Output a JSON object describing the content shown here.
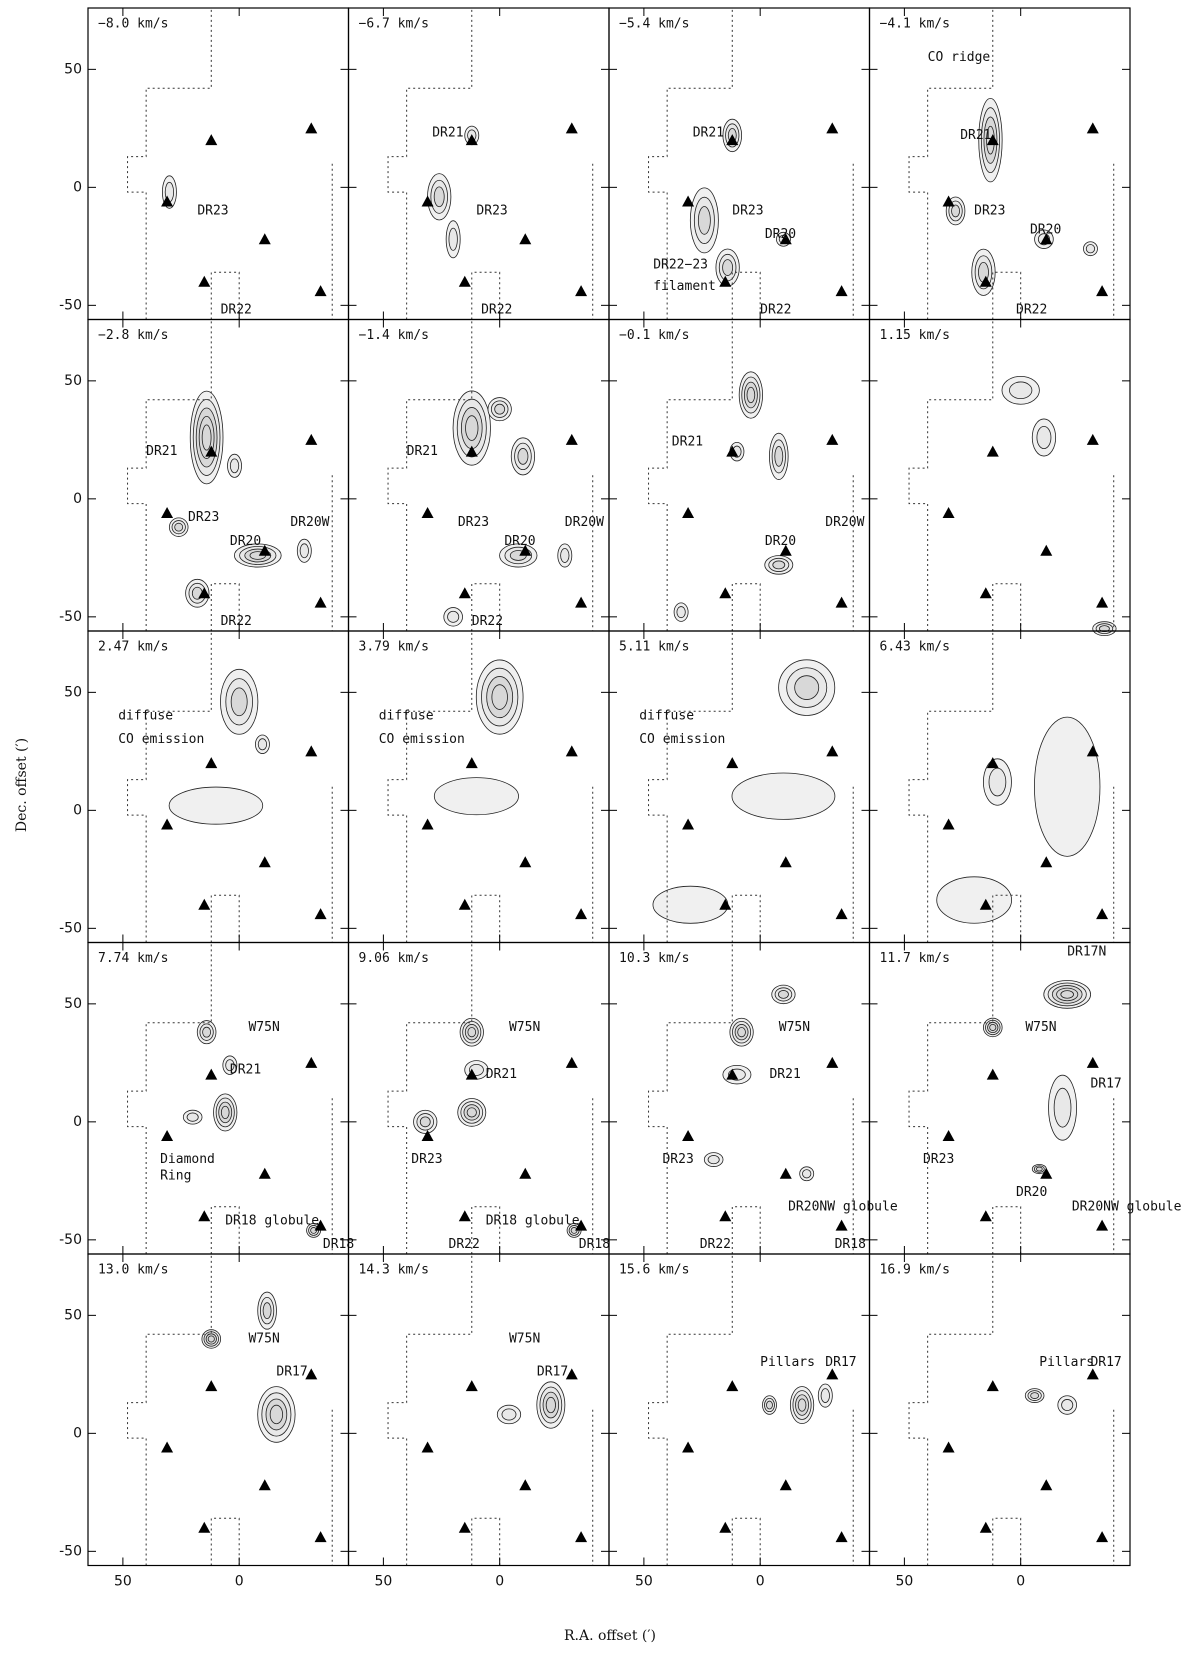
{
  "figure": {
    "xlabel": "R.A. offset (′)",
    "ylabel": "Dec. offset (′)",
    "xlim": [
      65,
      -47
    ],
    "ylim": [
      -56,
      76
    ],
    "xticks": [
      50,
      0
    ],
    "yticks": [
      -50,
      0,
      50
    ],
    "markers": [
      [
        12,
        20
      ],
      [
        -31,
        25
      ],
      [
        31,
        -6
      ],
      [
        -11,
        -22
      ],
      [
        15,
        -40
      ],
      [
        -35,
        -44
      ]
    ],
    "panels": [
      {
        "velocity": "−8.0 km/s",
        "annotations": [
          "DR23",
          "DR22"
        ]
      },
      {
        "velocity": "−6.7 km/s",
        "annotations": [
          "DR21",
          "DR23",
          "DR22"
        ]
      },
      {
        "velocity": "−5.4 km/s",
        "annotations": [
          "DR21",
          "DR23",
          "DR20",
          "DR22−23",
          "filament",
          "DR22"
        ]
      },
      {
        "velocity": "−4.1 km/s",
        "annotations": [
          "CO ridge",
          "DR21",
          "DR23",
          "DR20",
          "DR22"
        ]
      },
      {
        "velocity": "−2.8 km/s",
        "annotations": [
          "DR21",
          "DR23",
          "DR20",
          "DR20W",
          "DR22"
        ]
      },
      {
        "velocity": "−1.4 km/s",
        "annotations": [
          "DR21",
          "DR23",
          "DR20",
          "DR20W",
          "DR22"
        ]
      },
      {
        "velocity": "−0.1 km/s",
        "annotations": [
          "DR21",
          "DR20",
          "DR20W"
        ]
      },
      {
        "velocity": "1.15 km/s",
        "annotations": []
      },
      {
        "velocity": "2.47 km/s",
        "annotations": [
          "diffuse",
          "CO emission"
        ]
      },
      {
        "velocity": "3.79 km/s",
        "annotations": [
          "diffuse",
          "CO emission"
        ]
      },
      {
        "velocity": "5.11 km/s",
        "annotations": [
          "diffuse",
          "CO emission"
        ]
      },
      {
        "velocity": "6.43 km/s",
        "annotations": []
      },
      {
        "velocity": "7.74 km/s",
        "annotations": [
          "W75N",
          "DR21",
          "Diamond",
          "Ring",
          "DR18 globule",
          "DR18"
        ]
      },
      {
        "velocity": "9.06 km/s",
        "annotations": [
          "W75N",
          "DR21",
          "DR23",
          "DR22",
          "DR18 globule",
          "DR18"
        ]
      },
      {
        "velocity": "10.3 km/s",
        "annotations": [
          "W75N",
          "DR21",
          "DR23",
          "DR20NW globule",
          "DR22",
          "DR18"
        ]
      },
      {
        "velocity": "11.7 km/s",
        "annotations": [
          "DR17N",
          "W75N",
          "DR17",
          "DR23",
          "DR20",
          "DR20NW globule"
        ]
      },
      {
        "velocity": "13.0 km/s",
        "annotations": [
          "W75N",
          "DR17"
        ]
      },
      {
        "velocity": "14.3 km/s",
        "annotations": [
          "W75N",
          "DR17"
        ]
      },
      {
        "velocity": "15.6 km/s",
        "annotations": [
          "Pillars",
          "DR17"
        ]
      },
      {
        "velocity": "16.9 km/s",
        "annotations": [
          "Pillars",
          "DR17"
        ]
      }
    ]
  }
}
